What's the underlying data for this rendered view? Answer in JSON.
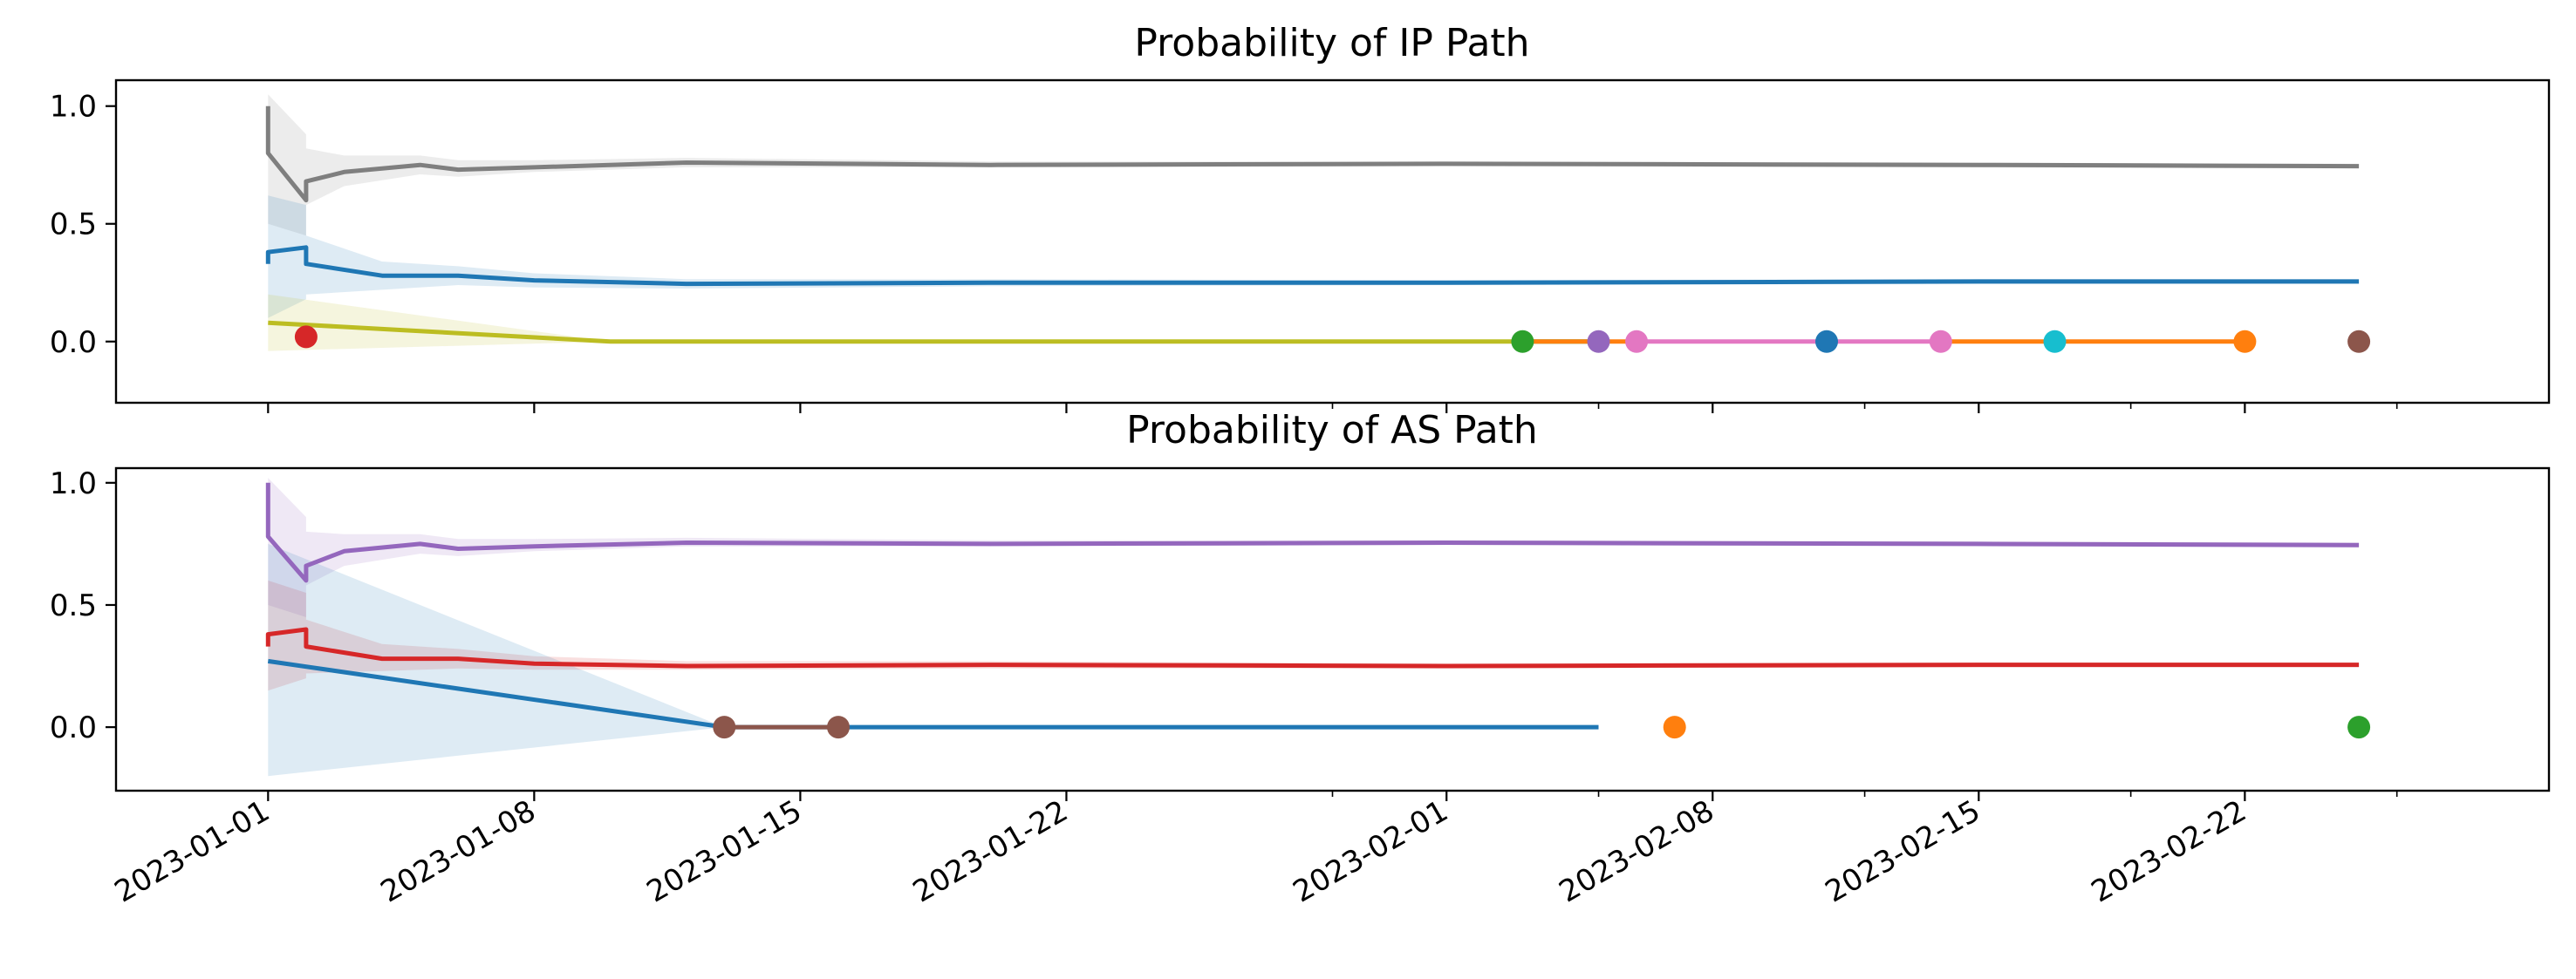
{
  "chart_data": [
    {
      "type": "line",
      "title": "Probability of IP Path",
      "xlabel": "",
      "ylabel": "",
      "xlim": [
        "2022-12-28",
        "2023-03-02"
      ],
      "ylim": [
        -0.26,
        1.11
      ],
      "yticks": [
        1.0,
        0.5,
        0.0
      ],
      "ytick_labels": [
        "1.0",
        "0.5",
        "0.0"
      ],
      "xticks": [
        "2023-01-01",
        "2023-01-08",
        "2023-01-15",
        "2023-01-22",
        "2023-02-01",
        "2023-02-08",
        "2023-02-15",
        "2023-02-22"
      ],
      "xtick_labels": [],
      "grid": false,
      "legend": false,
      "series": [
        {
          "color": "#7f7f7f",
          "band_color": "#7f7f7f",
          "x": [
            "2023-01-01",
            "2023-01-01",
            "2023-01-02",
            "2023-01-02",
            "2023-01-03",
            "2023-01-05",
            "2023-01-06",
            "2023-01-08",
            "2023-01-12",
            "2023-01-20",
            "2023-02-01",
            "2023-02-15",
            "2023-02-25"
          ],
          "y": [
            1.0,
            0.8,
            0.6,
            0.68,
            0.72,
            0.75,
            0.73,
            0.74,
            0.76,
            0.75,
            0.755,
            0.75,
            0.745
          ],
          "band_lower": [
            1.0,
            0.5,
            0.45,
            0.58,
            0.66,
            0.71,
            0.7,
            0.72,
            0.74,
            0.74,
            0.745,
            0.74,
            0.735
          ],
          "band_upper": [
            1.0,
            1.05,
            0.88,
            0.82,
            0.79,
            0.79,
            0.77,
            0.77,
            0.78,
            0.765,
            0.765,
            0.76,
            0.755
          ]
        },
        {
          "color": "#1f77b4",
          "band_color": "#1f77b4",
          "x": [
            "2023-01-01",
            "2023-01-01",
            "2023-01-02",
            "2023-01-02",
            "2023-01-04",
            "2023-01-06",
            "2023-01-08",
            "2023-01-12",
            "2023-01-20",
            "2023-02-01",
            "2023-02-15",
            "2023-02-25"
          ],
          "y": [
            0.33,
            0.38,
            0.4,
            0.33,
            0.28,
            0.28,
            0.26,
            0.245,
            0.25,
            0.25,
            0.255,
            0.255
          ],
          "band_lower": [
            -0.05,
            0.1,
            0.18,
            0.2,
            0.22,
            0.24,
            0.23,
            0.225,
            0.235,
            0.24,
            0.245,
            0.245
          ],
          "band_upper": [
            0.5,
            0.62,
            0.58,
            0.45,
            0.34,
            0.32,
            0.29,
            0.265,
            0.265,
            0.26,
            0.265,
            0.265
          ]
        },
        {
          "color": "#bcbd22",
          "band_color": "#bcbd22",
          "x": [
            "2023-01-01",
            "2023-01-10",
            "2023-02-03"
          ],
          "y": [
            0.08,
            0.0,
            0.0
          ],
          "band_lower": [
            -0.04,
            0.0,
            0.0
          ],
          "band_upper": [
            0.2,
            0.0,
            0.0
          ]
        },
        {
          "color": "#2ca02c",
          "x": [
            "2023-02-03",
            "2023-02-05"
          ],
          "y": [
            0.0,
            0.0
          ]
        },
        {
          "color": "#ff7f0e",
          "x": [
            "2023-02-03",
            "2023-02-06"
          ],
          "y": [
            0.0,
            0.0
          ]
        },
        {
          "color": "#e377c2",
          "x": [
            "2023-02-06",
            "2023-02-11"
          ],
          "y": [
            0.0,
            0.0
          ]
        },
        {
          "color": "#e377c2",
          "x": [
            "2023-02-11",
            "2023-02-14"
          ],
          "y": [
            0.0,
            0.0
          ]
        },
        {
          "color": "#ff7f0e",
          "x": [
            "2023-02-14",
            "2023-02-22"
          ],
          "y": [
            0.0,
            0.0
          ]
        }
      ],
      "markers": [
        {
          "x": "2023-01-02",
          "y": 0.02,
          "color": "#d62728"
        },
        {
          "x": "2023-02-03",
          "y": 0.0,
          "color": "#2ca02c"
        },
        {
          "x": "2023-02-05",
          "y": 0.0,
          "color": "#9467bd"
        },
        {
          "x": "2023-02-06",
          "y": 0.0,
          "color": "#e377c2"
        },
        {
          "x": "2023-02-11",
          "y": 0.0,
          "color": "#1f77b4"
        },
        {
          "x": "2023-02-14",
          "y": 0.0,
          "color": "#e377c2"
        },
        {
          "x": "2023-02-17",
          "y": 0.0,
          "color": "#17becf"
        },
        {
          "x": "2023-02-22",
          "y": 0.0,
          "color": "#ff7f0e"
        },
        {
          "x": "2023-02-25",
          "y": 0.0,
          "color": "#8c564b"
        }
      ]
    },
    {
      "type": "line",
      "title": "Probability of AS Path",
      "xlabel": "",
      "ylabel": "",
      "xlim": [
        "2022-12-28",
        "2023-03-02"
      ],
      "ylim": [
        -0.26,
        1.06
      ],
      "yticks": [
        1.0,
        0.5,
        0.0
      ],
      "ytick_labels": [
        "1.0",
        "0.5",
        "0.0"
      ],
      "xticks": [
        "2023-01-01",
        "2023-01-08",
        "2023-01-15",
        "2023-01-22",
        "2023-02-01",
        "2023-02-08",
        "2023-02-15",
        "2023-02-22"
      ],
      "xtick_labels": [
        "2023-01-01",
        "2023-01-08",
        "2023-01-15",
        "2023-01-22",
        "2023-02-01",
        "2023-02-08",
        "2023-02-15",
        "2023-02-22"
      ],
      "grid": false,
      "legend": false,
      "series": [
        {
          "color": "#9467bd",
          "band_color": "#9467bd",
          "x": [
            "2023-01-01",
            "2023-01-01",
            "2023-01-02",
            "2023-01-02",
            "2023-01-03",
            "2023-01-05",
            "2023-01-06",
            "2023-01-08",
            "2023-01-12",
            "2023-01-20",
            "2023-02-01",
            "2023-02-15",
            "2023-02-25"
          ],
          "y": [
            1.0,
            0.78,
            0.6,
            0.66,
            0.72,
            0.75,
            0.73,
            0.74,
            0.755,
            0.75,
            0.755,
            0.75,
            0.745
          ],
          "band_lower": [
            1.0,
            0.5,
            0.45,
            0.58,
            0.66,
            0.71,
            0.7,
            0.72,
            0.74,
            0.74,
            0.745,
            0.74,
            0.735
          ],
          "band_upper": [
            1.0,
            1.02,
            0.86,
            0.8,
            0.79,
            0.79,
            0.77,
            0.77,
            0.775,
            0.765,
            0.765,
            0.76,
            0.755
          ]
        },
        {
          "color": "#d62728",
          "band_color": "#d62728",
          "x": [
            "2023-01-01",
            "2023-01-01",
            "2023-01-02",
            "2023-01-02",
            "2023-01-04",
            "2023-01-06",
            "2023-01-08",
            "2023-01-12",
            "2023-01-20",
            "2023-02-01",
            "2023-02-15",
            "2023-02-25"
          ],
          "y": [
            0.33,
            0.38,
            0.4,
            0.33,
            0.28,
            0.28,
            0.26,
            0.25,
            0.255,
            0.25,
            0.255,
            0.255
          ],
          "band_lower": [
            -0.1,
            0.15,
            0.2,
            0.22,
            0.23,
            0.24,
            0.235,
            0.235,
            0.24,
            0.24,
            0.245,
            0.245
          ],
          "band_upper": [
            0.6,
            0.6,
            0.55,
            0.44,
            0.34,
            0.32,
            0.29,
            0.27,
            0.27,
            0.26,
            0.265,
            0.265
          ]
        },
        {
          "color": "#1f77b4",
          "band_color": "#1f77b4",
          "x": [
            "2023-01-01",
            "2023-01-13",
            "2023-02-05"
          ],
          "y": [
            0.27,
            0.0,
            0.0
          ],
          "band_lower": [
            -0.2,
            0.0,
            0.0
          ],
          "band_upper": [
            0.75,
            0.0,
            0.0
          ]
        },
        {
          "color": "#8c564b",
          "x": [
            "2023-01-13",
            "2023-01-16"
          ],
          "y": [
            0.0,
            0.0
          ]
        }
      ],
      "markers": [
        {
          "x": "2023-01-13",
          "y": 0.0,
          "color": "#8c564b"
        },
        {
          "x": "2023-01-16",
          "y": 0.0,
          "color": "#8c564b"
        },
        {
          "x": "2023-02-07",
          "y": 0.0,
          "color": "#ff7f0e"
        },
        {
          "x": "2023-02-25",
          "y": 0.0,
          "color": "#2ca02c"
        }
      ]
    }
  ]
}
